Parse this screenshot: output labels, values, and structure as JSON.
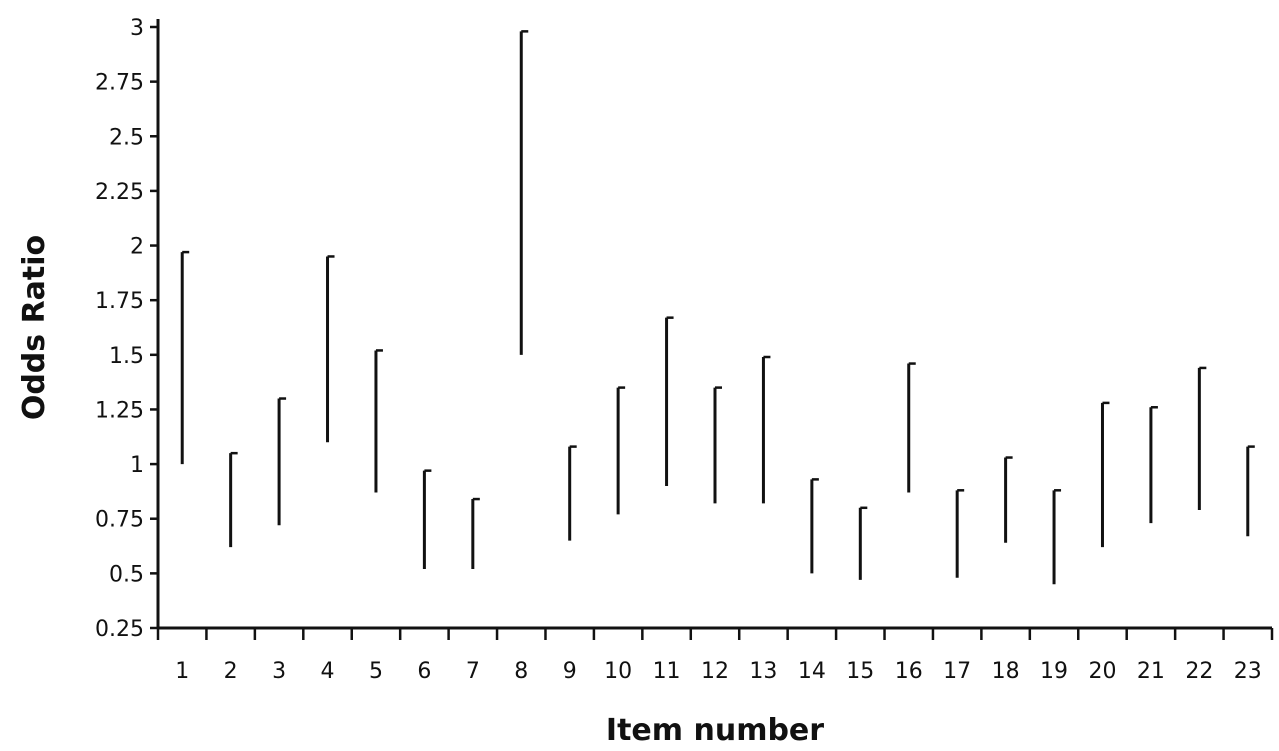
{
  "chart_data": {
    "type": "error-bar",
    "xlabel": "Item number",
    "ylabel": "Odds Ratio",
    "ylim": [
      0.25,
      3
    ],
    "yticks": [
      "0.25",
      "0.5",
      "0.75",
      "1",
      "1.25",
      "1.5",
      "1.75",
      "2",
      "2.25",
      "2.5",
      "2.75",
      "3"
    ],
    "categories": [
      "1",
      "2",
      "3",
      "4",
      "5",
      "6",
      "7",
      "8",
      "9",
      "10",
      "11",
      "12",
      "13",
      "14",
      "15",
      "16",
      "17",
      "18",
      "19",
      "20",
      "21",
      "22",
      "23"
    ],
    "intervals": [
      {
        "item": "1",
        "low": 1.0,
        "high": 1.97
      },
      {
        "item": "2",
        "low": 0.62,
        "high": 1.05
      },
      {
        "item": "3",
        "low": 0.72,
        "high": 1.3
      },
      {
        "item": "4",
        "low": 1.1,
        "high": 1.95
      },
      {
        "item": "5",
        "low": 0.87,
        "high": 1.52
      },
      {
        "item": "6",
        "low": 0.52,
        "high": 0.97
      },
      {
        "item": "7",
        "low": 0.52,
        "high": 0.84
      },
      {
        "item": "8",
        "low": 1.5,
        "high": 2.98
      },
      {
        "item": "9",
        "low": 0.65,
        "high": 1.08
      },
      {
        "item": "10",
        "low": 0.77,
        "high": 1.35
      },
      {
        "item": "11",
        "low": 0.9,
        "high": 1.67
      },
      {
        "item": "12",
        "low": 0.82,
        "high": 1.35
      },
      {
        "item": "13",
        "low": 0.82,
        "high": 1.49
      },
      {
        "item": "14",
        "low": 0.5,
        "high": 0.93
      },
      {
        "item": "15",
        "low": 0.47,
        "high": 0.8
      },
      {
        "item": "16",
        "low": 0.87,
        "high": 1.46
      },
      {
        "item": "17",
        "low": 0.48,
        "high": 0.88
      },
      {
        "item": "18",
        "low": 0.64,
        "high": 1.03
      },
      {
        "item": "19",
        "low": 0.45,
        "high": 0.88
      },
      {
        "item": "20",
        "low": 0.62,
        "high": 1.28
      },
      {
        "item": "21",
        "low": 0.73,
        "high": 1.26
      },
      {
        "item": "22",
        "low": 0.79,
        "high": 1.44
      },
      {
        "item": "23",
        "low": 0.67,
        "high": 1.08
      }
    ]
  }
}
